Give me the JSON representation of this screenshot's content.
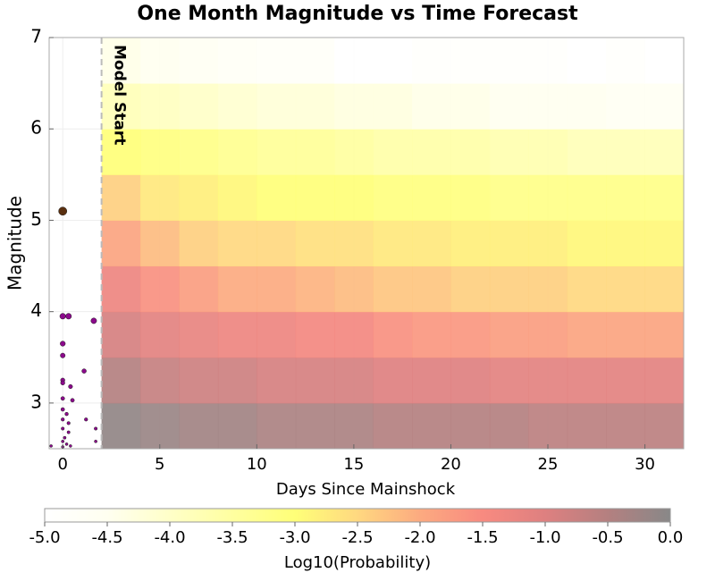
{
  "chart_data": {
    "type": "heatmap",
    "title": "One Month Magnitude vs Time Forecast",
    "x_label": "Days Since Mainshock",
    "y_label": "Magnitude",
    "xlim": [
      -0.7,
      32
    ],
    "ylim": [
      2.5,
      7
    ],
    "xticks": [
      0,
      5,
      10,
      15,
      20,
      25,
      30
    ],
    "yticks": [
      3,
      4,
      5,
      6,
      7
    ],
    "grid": true,
    "x_edges": [
      2,
      4,
      6,
      8,
      10,
      12,
      14,
      16,
      18,
      20,
      22,
      24,
      26,
      28,
      30,
      32
    ],
    "y_edges": [
      2.5,
      3,
      3.5,
      4,
      4.5,
      5,
      5.5,
      6,
      6.5,
      7
    ],
    "z": [
      [
        -0.1,
        -0.2,
        -0.3,
        -0.3,
        -0.4,
        -0.4,
        -0.4,
        -0.5,
        -0.5,
        -0.5,
        -0.5,
        -0.6,
        -0.6,
        -0.6,
        -0.6
      ],
      [
        -0.5,
        -0.7,
        -0.8,
        -0.8,
        -0.9,
        -0.9,
        -0.9,
        -1.0,
        -1.0,
        -1.0,
        -1.1,
        -1.1,
        -1.1,
        -1.1,
        -1.1
      ],
      [
        -0.9,
        -1.1,
        -1.2,
        -1.3,
        -1.3,
        -1.4,
        -1.4,
        -1.6,
        -1.7,
        -1.7,
        -1.8,
        -1.8,
        -1.9,
        -1.9,
        -1.9
      ],
      [
        -1.3,
        -1.6,
        -1.8,
        -2.0,
        -2.0,
        -2.1,
        -2.2,
        -2.3,
        -2.3,
        -2.4,
        -2.4,
        -2.4,
        -2.5,
        -2.5,
        -2.5
      ],
      [
        -1.9,
        -2.2,
        -2.4,
        -2.5,
        -2.5,
        -2.6,
        -2.6,
        -2.7,
        -2.7,
        -2.8,
        -2.8,
        -2.8,
        -2.9,
        -2.9,
        -2.9
      ],
      [
        -2.4,
        -2.7,
        -2.8,
        -2.9,
        -3.0,
        -3.0,
        -3.0,
        -3.1,
        -3.1,
        -3.1,
        -3.2,
        -3.2,
        -3.2,
        -3.2,
        -3.2
      ],
      [
        -3.0,
        -3.1,
        -3.2,
        -3.3,
        -3.4,
        -3.4,
        -3.5,
        -3.6,
        -3.6,
        -3.6,
        -3.7,
        -3.7,
        -3.8,
        -3.8,
        -3.8
      ],
      [
        -3.8,
        -3.9,
        -4.0,
        -4.1,
        -4.2,
        -4.2,
        -4.3,
        -4.3,
        -4.4,
        -4.4,
        -4.5,
        -4.5,
        -4.5,
        -4.6,
        -4.6
      ],
      [
        -4.4,
        -4.5,
        -4.6,
        -4.7,
        -4.8,
        -4.8,
        -5.0,
        -5.0,
        -4.9,
        -4.9,
        -4.9,
        -4.9,
        -5.0,
        -4.9,
        -5.0
      ]
    ],
    "clim": [
      -5,
      0
    ],
    "colormap": [
      "#ffffff",
      "#fffff0",
      "#ffffc8",
      "#ffffa0",
      "#ffff78",
      "#ffd880",
      "#fcaa80",
      "#f88a80",
      "#de8080",
      "#b48080",
      "#888888"
    ],
    "points": [
      {
        "color": "#5a3010",
        "x": [
          0
        ],
        "y": [
          5.1
        ]
      },
      {
        "color": "#8b0a8b",
        "x": [
          0,
          0.3,
          1.6,
          0,
          0,
          1.1,
          0,
          0,
          0.4,
          0,
          0.5,
          0,
          0.2,
          1.2,
          0,
          0.3,
          0,
          1.7,
          0.3,
          0.1,
          0,
          1.7,
          -0.6,
          0.2,
          0.4,
          0
        ],
        "y": [
          3.95,
          3.95,
          3.9,
          3.65,
          3.52,
          3.35,
          3.25,
          3.22,
          3.18,
          3.05,
          3.03,
          2.93,
          2.88,
          2.82,
          2.82,
          2.78,
          2.72,
          2.72,
          2.68,
          2.62,
          2.58,
          2.58,
          2.53,
          2.55,
          2.53,
          2.52
        ]
      }
    ],
    "model_start": {
      "x": 2,
      "label": "Model Start"
    },
    "colorbar": {
      "label": "Log10(Probability)",
      "ticks": [
        {
          "value": -5,
          "label": "-5.0"
        },
        {
          "value": -4.5,
          "label": "-4.5"
        },
        {
          "value": -4,
          "label": "-4.0"
        },
        {
          "value": -3.5,
          "label": "-3.5"
        },
        {
          "value": -3,
          "label": "-3.0"
        },
        {
          "value": -2.5,
          "label": "-2.5"
        },
        {
          "value": -2,
          "label": "-2.0"
        },
        {
          "value": -1.5,
          "label": "-1.5"
        },
        {
          "value": -1,
          "label": "-1.0"
        },
        {
          "value": -0.5,
          "label": "-0.5"
        },
        {
          "value": 0,
          "label": "0.0"
        }
      ]
    }
  }
}
